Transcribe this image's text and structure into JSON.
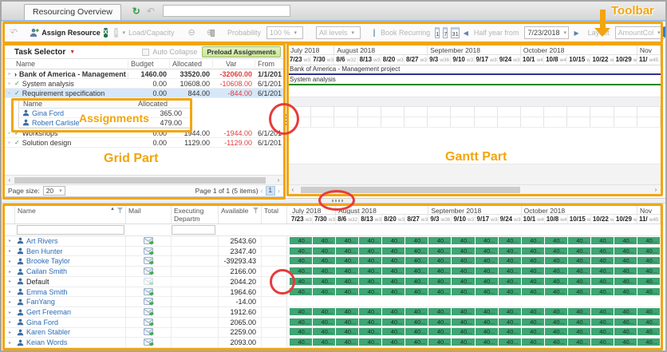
{
  "tab": {
    "title": "Resourcing Overview"
  },
  "toolbar": {
    "assign_resource_label": "Assign Resource",
    "load_capacity_label": "Load/Capacity",
    "probability_label": "Probability",
    "probability_value": "100 %",
    "levels_value": "All levels",
    "book_recurring_label": "Book Recurring",
    "calendar_day": "1",
    "calendar_week": "7",
    "calendar_month": "31",
    "range_label": "Half year from",
    "range_date": "7/23/2018",
    "layout_label": "Layout",
    "layout_value": "AmountCol"
  },
  "grid": {
    "title": "Task Selector",
    "auto_collapse": "Auto Collapse",
    "preload_btn": "Preload Assignments",
    "columns": [
      "Name",
      "Budget",
      "Allocated",
      "Var",
      "From"
    ],
    "rows": [
      {
        "name": "Bank of America - Management project",
        "budget": "1460.00",
        "allocated": "33520.00",
        "var": "-32060.00",
        "from": "1/1/201",
        "bold": true
      },
      {
        "name": "System analysis",
        "budget": "0.00",
        "allocated": "10608.00",
        "var": "-10608.00",
        "from": "6/1/201"
      },
      {
        "name": "Requirement specification",
        "budget": "0.00",
        "allocated": "844.00",
        "var": "-844.00",
        "from": "6/1/201",
        "selected": true
      },
      {
        "name": "Workshops",
        "budget": "0.00",
        "allocated": "1944.00",
        "var": "-1944.00",
        "from": "6/1/201"
      },
      {
        "name": "Solution design",
        "budget": "0.00",
        "allocated": "1129.00",
        "var": "-1129.00",
        "from": "6/1/201"
      }
    ],
    "assignments": {
      "columns": [
        "Name",
        "Allocated"
      ],
      "rows": [
        {
          "name": "Gina Ford",
          "allocated": "365.00"
        },
        {
          "name": "Robert Carlisle",
          "allocated": "479.00"
        }
      ]
    },
    "pager": {
      "page_size_label": "Page size:",
      "page_size": "20",
      "info": "Page 1 of 1 (5 items)",
      "page": "1"
    }
  },
  "gantt": {
    "months": [
      {
        "label": "July 2018",
        "span": 2
      },
      {
        "label": "August 2018",
        "span": 4
      },
      {
        "label": "September 2018",
        "span": 4
      },
      {
        "label": "October 2018",
        "span": 5
      },
      {
        "label": "Nov",
        "span": 1
      }
    ],
    "weeks": [
      {
        "date": "7/23",
        "week": "w30"
      },
      {
        "date": "7/30",
        "week": "w31"
      },
      {
        "date": "8/6",
        "week": "w32"
      },
      {
        "date": "8/13",
        "week": "w33"
      },
      {
        "date": "8/20",
        "week": "w34"
      },
      {
        "date": "8/27",
        "week": "w35"
      },
      {
        "date": "9/3",
        "week": "w36"
      },
      {
        "date": "9/10",
        "week": "w37"
      },
      {
        "date": "9/17",
        "week": "w38"
      },
      {
        "date": "9/24",
        "week": "w39"
      },
      {
        "date": "10/1",
        "week": "w40"
      },
      {
        "date": "10/8",
        "week": "w41"
      },
      {
        "date": "10/15",
        "week": "w42"
      },
      {
        "date": "10/22",
        "week": "w43"
      },
      {
        "date": "10/29",
        "week": "w44"
      },
      {
        "date": "11/",
        "week": "w45"
      }
    ],
    "bars": [
      {
        "label": "Bank of America - Management project",
        "color": "#2e3193"
      },
      {
        "label": "System analysis",
        "color": "#1e8a1e"
      }
    ]
  },
  "resources": {
    "columns": {
      "name": "Name",
      "mail": "Mail",
      "dept": "Executing Departm",
      "available": "Available",
      "total": "Total"
    },
    "cell_value": "40...",
    "rows": [
      {
        "name": "Art Rivers",
        "available": "2543.60"
      },
      {
        "name": "Ben Hunter",
        "available": "2347.40"
      },
      {
        "name": "Brooke Taylor",
        "available": "-39293.43"
      },
      {
        "name": "Cailan Smith",
        "available": "2166.00"
      },
      {
        "name": "Default",
        "available": "2044.20",
        "plain": true,
        "mail_disabled": true
      },
      {
        "name": "Emma Smith",
        "available": "1964.60"
      },
      {
        "name": "FanYang",
        "available": "-14.00",
        "unavailable": true
      },
      {
        "name": "Gert Freeman",
        "available": "1912.60"
      },
      {
        "name": "Gina Ford",
        "available": "2065.00"
      },
      {
        "name": "Karen Stabler",
        "available": "2259.00"
      },
      {
        "name": "Keian Words",
        "available": "2093.00"
      }
    ]
  },
  "annotations": {
    "toolbar_label": "Toolbar",
    "assignments_label": "Assignments",
    "grid_label": "Grid Part",
    "gantt_label": "Gantt Part",
    "accent_orange": "#f2a50c",
    "accent_red": "#e73b3b"
  },
  "colors": {
    "booking_cell_green": "#3ea573",
    "summary_bar_navy": "#2e3193",
    "task_bar_green": "#1e8a1e",
    "link_blue": "#2b6cb5",
    "negative_red": "#e03c3c",
    "selected_row_blue": "#d5e7f9"
  }
}
